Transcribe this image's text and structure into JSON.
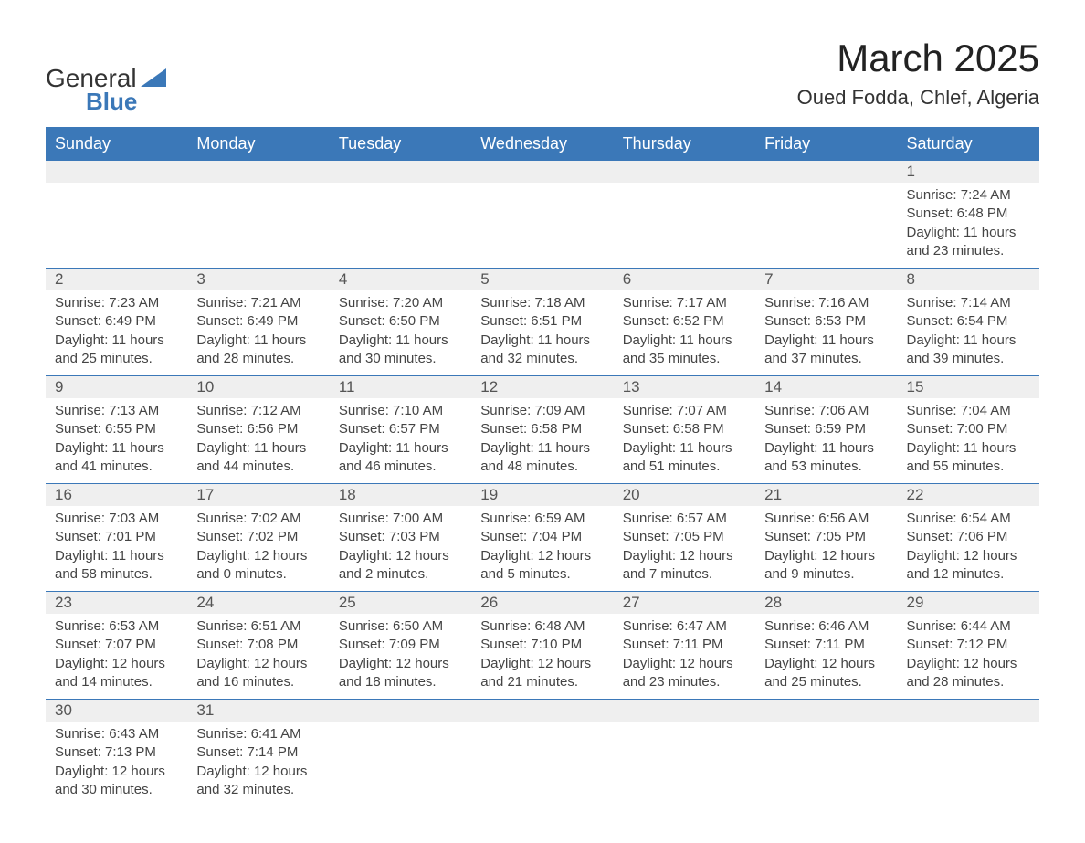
{
  "brand": {
    "text_general": "General",
    "text_blue": "Blue",
    "accent_color": "#3b78b8"
  },
  "title": {
    "month_year": "March 2025",
    "location": "Oued Fodda, Chlef, Algeria"
  },
  "colors": {
    "header_bg": "#3b78b8",
    "header_text": "#ffffff",
    "daynum_bg": "#efefef",
    "text": "#444444",
    "row_border": "#3b78b8"
  },
  "typography": {
    "month_title_fontsize": 42,
    "location_fontsize": 22,
    "day_header_fontsize": 18,
    "day_number_fontsize": 17,
    "body_fontsize": 15
  },
  "day_headers": [
    "Sunday",
    "Monday",
    "Tuesday",
    "Wednesday",
    "Thursday",
    "Friday",
    "Saturday"
  ],
  "weeks": [
    [
      {
        "num": "",
        "lines": []
      },
      {
        "num": "",
        "lines": []
      },
      {
        "num": "",
        "lines": []
      },
      {
        "num": "",
        "lines": []
      },
      {
        "num": "",
        "lines": []
      },
      {
        "num": "",
        "lines": []
      },
      {
        "num": "1",
        "lines": [
          "Sunrise: 7:24 AM",
          "Sunset: 6:48 PM",
          "Daylight: 11 hours and 23 minutes."
        ]
      }
    ],
    [
      {
        "num": "2",
        "lines": [
          "Sunrise: 7:23 AM",
          "Sunset: 6:49 PM",
          "Daylight: 11 hours and 25 minutes."
        ]
      },
      {
        "num": "3",
        "lines": [
          "Sunrise: 7:21 AM",
          "Sunset: 6:49 PM",
          "Daylight: 11 hours and 28 minutes."
        ]
      },
      {
        "num": "4",
        "lines": [
          "Sunrise: 7:20 AM",
          "Sunset: 6:50 PM",
          "Daylight: 11 hours and 30 minutes."
        ]
      },
      {
        "num": "5",
        "lines": [
          "Sunrise: 7:18 AM",
          "Sunset: 6:51 PM",
          "Daylight: 11 hours and 32 minutes."
        ]
      },
      {
        "num": "6",
        "lines": [
          "Sunrise: 7:17 AM",
          "Sunset: 6:52 PM",
          "Daylight: 11 hours and 35 minutes."
        ]
      },
      {
        "num": "7",
        "lines": [
          "Sunrise: 7:16 AM",
          "Sunset: 6:53 PM",
          "Daylight: 11 hours and 37 minutes."
        ]
      },
      {
        "num": "8",
        "lines": [
          "Sunrise: 7:14 AM",
          "Sunset: 6:54 PM",
          "Daylight: 11 hours and 39 minutes."
        ]
      }
    ],
    [
      {
        "num": "9",
        "lines": [
          "Sunrise: 7:13 AM",
          "Sunset: 6:55 PM",
          "Daylight: 11 hours and 41 minutes."
        ]
      },
      {
        "num": "10",
        "lines": [
          "Sunrise: 7:12 AM",
          "Sunset: 6:56 PM",
          "Daylight: 11 hours and 44 minutes."
        ]
      },
      {
        "num": "11",
        "lines": [
          "Sunrise: 7:10 AM",
          "Sunset: 6:57 PM",
          "Daylight: 11 hours and 46 minutes."
        ]
      },
      {
        "num": "12",
        "lines": [
          "Sunrise: 7:09 AM",
          "Sunset: 6:58 PM",
          "Daylight: 11 hours and 48 minutes."
        ]
      },
      {
        "num": "13",
        "lines": [
          "Sunrise: 7:07 AM",
          "Sunset: 6:58 PM",
          "Daylight: 11 hours and 51 minutes."
        ]
      },
      {
        "num": "14",
        "lines": [
          "Sunrise: 7:06 AM",
          "Sunset: 6:59 PM",
          "Daylight: 11 hours and 53 minutes."
        ]
      },
      {
        "num": "15",
        "lines": [
          "Sunrise: 7:04 AM",
          "Sunset: 7:00 PM",
          "Daylight: 11 hours and 55 minutes."
        ]
      }
    ],
    [
      {
        "num": "16",
        "lines": [
          "Sunrise: 7:03 AM",
          "Sunset: 7:01 PM",
          "Daylight: 11 hours and 58 minutes."
        ]
      },
      {
        "num": "17",
        "lines": [
          "Sunrise: 7:02 AM",
          "Sunset: 7:02 PM",
          "Daylight: 12 hours and 0 minutes."
        ]
      },
      {
        "num": "18",
        "lines": [
          "Sunrise: 7:00 AM",
          "Sunset: 7:03 PM",
          "Daylight: 12 hours and 2 minutes."
        ]
      },
      {
        "num": "19",
        "lines": [
          "Sunrise: 6:59 AM",
          "Sunset: 7:04 PM",
          "Daylight: 12 hours and 5 minutes."
        ]
      },
      {
        "num": "20",
        "lines": [
          "Sunrise: 6:57 AM",
          "Sunset: 7:05 PM",
          "Daylight: 12 hours and 7 minutes."
        ]
      },
      {
        "num": "21",
        "lines": [
          "Sunrise: 6:56 AM",
          "Sunset: 7:05 PM",
          "Daylight: 12 hours and 9 minutes."
        ]
      },
      {
        "num": "22",
        "lines": [
          "Sunrise: 6:54 AM",
          "Sunset: 7:06 PM",
          "Daylight: 12 hours and 12 minutes."
        ]
      }
    ],
    [
      {
        "num": "23",
        "lines": [
          "Sunrise: 6:53 AM",
          "Sunset: 7:07 PM",
          "Daylight: 12 hours and 14 minutes."
        ]
      },
      {
        "num": "24",
        "lines": [
          "Sunrise: 6:51 AM",
          "Sunset: 7:08 PM",
          "Daylight: 12 hours and 16 minutes."
        ]
      },
      {
        "num": "25",
        "lines": [
          "Sunrise: 6:50 AM",
          "Sunset: 7:09 PM",
          "Daylight: 12 hours and 18 minutes."
        ]
      },
      {
        "num": "26",
        "lines": [
          "Sunrise: 6:48 AM",
          "Sunset: 7:10 PM",
          "Daylight: 12 hours and 21 minutes."
        ]
      },
      {
        "num": "27",
        "lines": [
          "Sunrise: 6:47 AM",
          "Sunset: 7:11 PM",
          "Daylight: 12 hours and 23 minutes."
        ]
      },
      {
        "num": "28",
        "lines": [
          "Sunrise: 6:46 AM",
          "Sunset: 7:11 PM",
          "Daylight: 12 hours and 25 minutes."
        ]
      },
      {
        "num": "29",
        "lines": [
          "Sunrise: 6:44 AM",
          "Sunset: 7:12 PM",
          "Daylight: 12 hours and 28 minutes."
        ]
      }
    ],
    [
      {
        "num": "30",
        "lines": [
          "Sunrise: 6:43 AM",
          "Sunset: 7:13 PM",
          "Daylight: 12 hours and 30 minutes."
        ]
      },
      {
        "num": "31",
        "lines": [
          "Sunrise: 6:41 AM",
          "Sunset: 7:14 PM",
          "Daylight: 12 hours and 32 minutes."
        ]
      },
      {
        "num": "",
        "lines": []
      },
      {
        "num": "",
        "lines": []
      },
      {
        "num": "",
        "lines": []
      },
      {
        "num": "",
        "lines": []
      },
      {
        "num": "",
        "lines": []
      }
    ]
  ]
}
